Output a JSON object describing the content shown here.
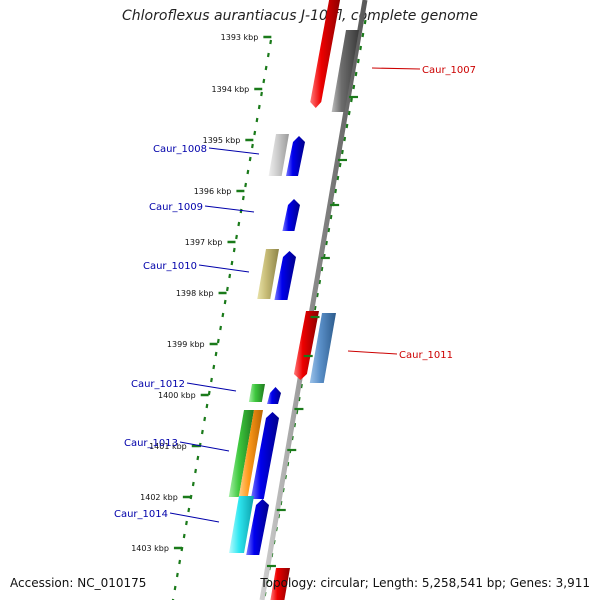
{
  "title": "Chloroflexus aurantiacus J-10-fl, complete genome",
  "footer": {
    "accession": "Accession: NC_010175",
    "topology": "Topology: circular; Length: 5,258,541 bp; Genes: 3,911"
  },
  "ticks": [
    "1393 kbp",
    "1394 kbp",
    "1395 kbp",
    "1396 kbp",
    "1397 kbp",
    "1398 kbp",
    "1399 kbp",
    "1400 kbp",
    "1401 kbp",
    "1402 kbp",
    "1403 kbp"
  ],
  "genes": [
    {
      "label": "Caur_1007",
      "strand": "reverse",
      "label_color": "#cc0000"
    },
    {
      "label": "Caur_1008",
      "strand": "forward",
      "label_color": "#0000aa"
    },
    {
      "label": "Caur_1009",
      "strand": "forward",
      "label_color": "#0000aa"
    },
    {
      "label": "Caur_1010",
      "strand": "forward",
      "label_color": "#0000aa"
    },
    {
      "label": "Caur_1011",
      "strand": "reverse",
      "label_color": "#cc0000"
    },
    {
      "label": "Caur_1012",
      "strand": "forward",
      "label_color": "#0000aa"
    },
    {
      "label": "Caur_1013",
      "strand": "forward",
      "label_color": "#0000aa"
    },
    {
      "label": "Caur_1014",
      "strand": "forward",
      "label_color": "#0000aa"
    }
  ],
  "colors": {
    "backbone": "#8a8a8a",
    "forward_cds": "#0000ee",
    "reverse_cds": "#ee0000",
    "dotted_ring": "#1a7a1a"
  }
}
